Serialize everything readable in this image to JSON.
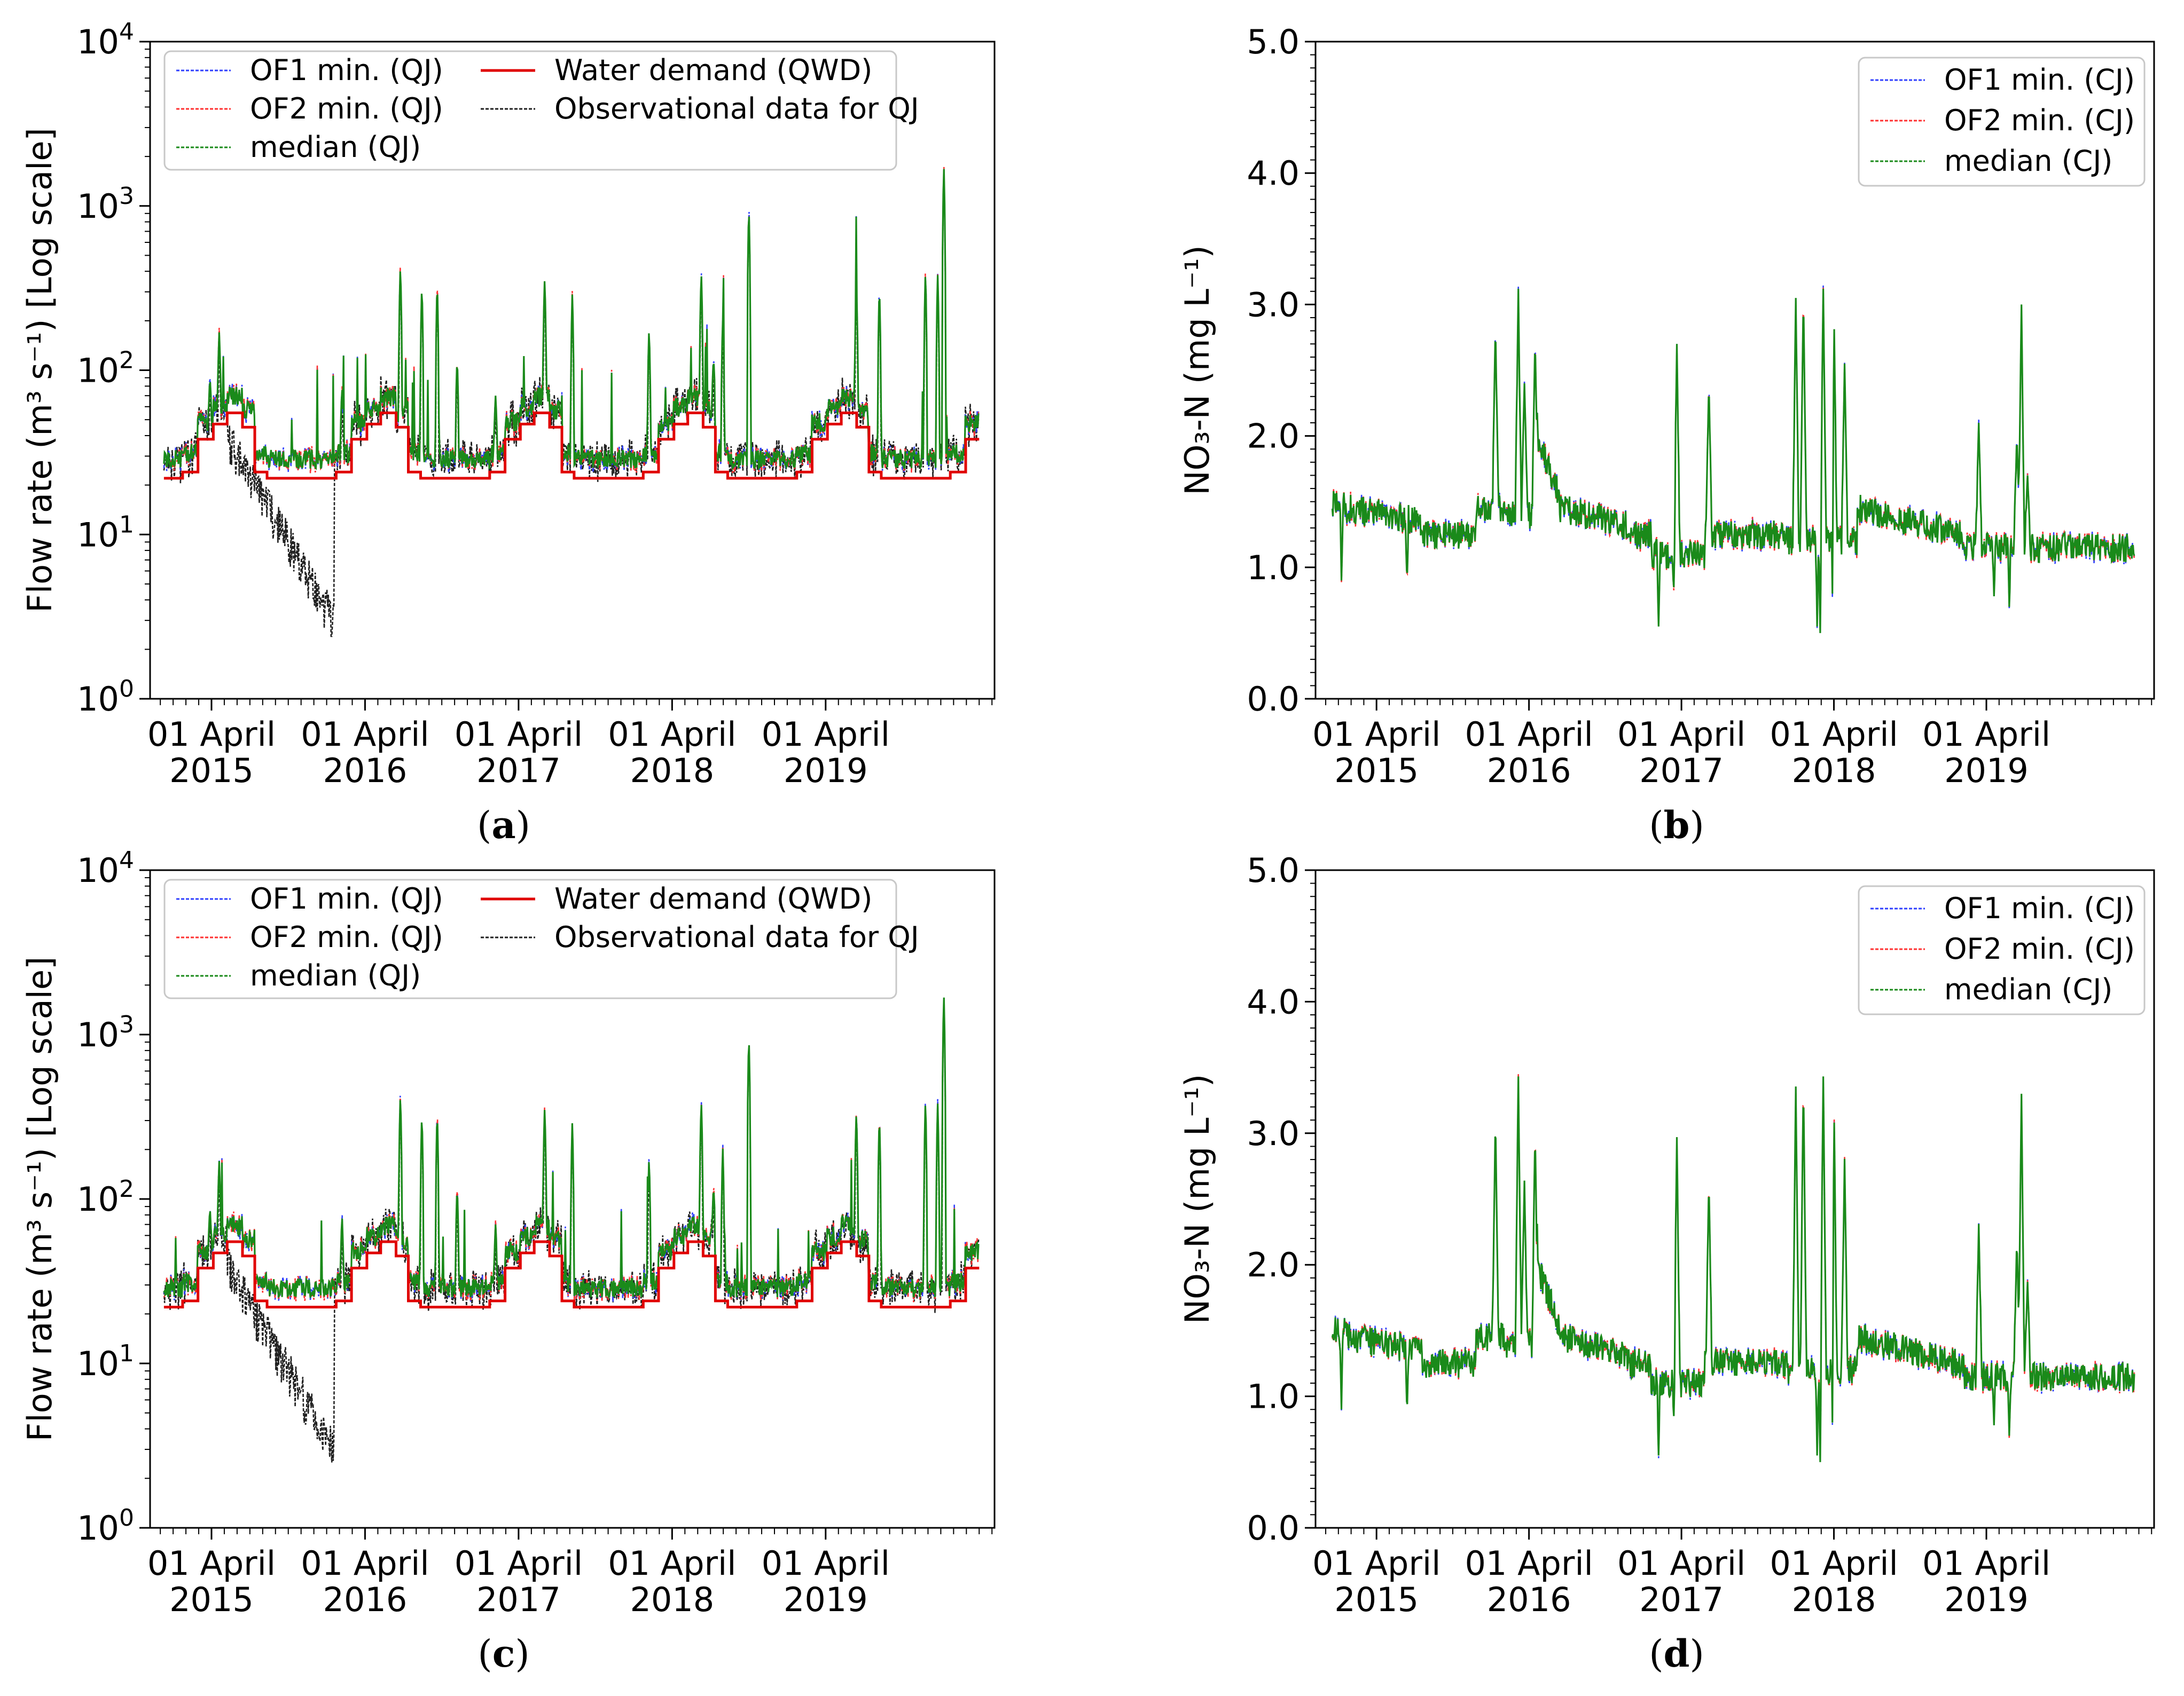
{
  "chart_data": [
    {
      "panel": "a",
      "caption": {
        "open": "(",
        "letter": "a",
        "close": ")"
      },
      "type": "line",
      "ylabel": "Flow rate (m³ s⁻¹) [Log scale]",
      "yscale": "log",
      "ylim": [
        1,
        10000
      ],
      "yticks": [
        {
          "base": "10",
          "exp": "0"
        },
        {
          "base": "10",
          "exp": "1"
        },
        {
          "base": "10",
          "exp": "2"
        },
        {
          "base": "10",
          "exp": "3"
        },
        {
          "base": "10",
          "exp": "4"
        }
      ],
      "xlim": [
        2014.85,
        2020.35
      ],
      "xticks": [
        {
          "line1": "01 April",
          "line2": "2015"
        },
        {
          "line1": "01 April",
          "line2": "2016"
        },
        {
          "line1": "01 April",
          "line2": "2017"
        },
        {
          "line1": "01 April",
          "line2": "2018"
        },
        {
          "line1": "01 April",
          "line2": "2019"
        }
      ],
      "legend": [
        "OF1 min. (QJ)",
        "OF2 min. (QJ)",
        "median (QJ)",
        "Water demand (QWD)",
        "Observational data for QJ"
      ],
      "legend_loc": "upper-left",
      "colors": {
        "of1": "#3040ff",
        "of2": "#ff3030",
        "median": "#1a8a1a",
        "demand": "#e00000",
        "obs": "#202020"
      }
    },
    {
      "panel": "b",
      "caption": {
        "open": "(",
        "letter": "b",
        "close": ")"
      },
      "type": "line",
      "ylabel": "NO₃-N (mg L⁻¹)",
      "ylim": [
        0,
        5
      ],
      "yticks": [
        "0.0",
        "1.0",
        "2.0",
        "3.0",
        "4.0",
        "5.0"
      ],
      "xlim": [
        2014.85,
        2020.35
      ],
      "xticks": [
        {
          "line1": "01 April",
          "line2": "2015"
        },
        {
          "line1": "01 April",
          "line2": "2016"
        },
        {
          "line1": "01 April",
          "line2": "2017"
        },
        {
          "line1": "01 April",
          "line2": "2018"
        },
        {
          "line1": "01 April",
          "line2": "2019"
        }
      ],
      "legend": [
        "OF1 min. (CJ)",
        "OF2 min. (CJ)",
        "median (CJ)"
      ],
      "legend_loc": "upper-right",
      "colors": {
        "of1": "#3040ff",
        "of2": "#ff3030",
        "median": "#1a8a1a"
      }
    },
    {
      "panel": "c",
      "caption": {
        "open": "(",
        "letter": "c",
        "close": ")"
      },
      "type": "line",
      "ylabel": "Flow rate (m³ s⁻¹) [Log scale]",
      "yscale": "log",
      "ylim": [
        1,
        10000
      ],
      "yticks": [
        {
          "base": "10",
          "exp": "0"
        },
        {
          "base": "10",
          "exp": "1"
        },
        {
          "base": "10",
          "exp": "2"
        },
        {
          "base": "10",
          "exp": "3"
        },
        {
          "base": "10",
          "exp": "4"
        }
      ],
      "xlim": [
        2014.85,
        2020.35
      ],
      "xticks": [
        {
          "line1": "01 April",
          "line2": "2015"
        },
        {
          "line1": "01 April",
          "line2": "2016"
        },
        {
          "line1": "01 April",
          "line2": "2017"
        },
        {
          "line1": "01 April",
          "line2": "2018"
        },
        {
          "line1": "01 April",
          "line2": "2019"
        }
      ],
      "legend": [
        "OF1 min. (QJ)",
        "OF2 min. (QJ)",
        "median (QJ)",
        "Water demand (QWD)",
        "Observational data for QJ"
      ],
      "legend_loc": "upper-left",
      "colors": {
        "of1": "#3040ff",
        "of2": "#ff3030",
        "median": "#1a8a1a",
        "demand": "#e00000",
        "obs": "#202020"
      }
    },
    {
      "panel": "d",
      "caption": {
        "open": "(",
        "letter": "d",
        "close": ")"
      },
      "type": "line",
      "ylabel": "NO₃-N (mg L⁻¹)",
      "ylim": [
        0,
        5
      ],
      "yticks": [
        "0.0",
        "1.0",
        "2.0",
        "3.0",
        "4.0",
        "5.0"
      ],
      "xlim": [
        2014.85,
        2020.35
      ],
      "xticks": [
        {
          "line1": "01 April",
          "line2": "2015"
        },
        {
          "line1": "01 April",
          "line2": "2016"
        },
        {
          "line1": "01 April",
          "line2": "2017"
        },
        {
          "line1": "01 April",
          "line2": "2018"
        },
        {
          "line1": "01 April",
          "line2": "2019"
        }
      ],
      "legend": [
        "OF1 min. (CJ)",
        "OF2 min. (CJ)",
        "median (CJ)"
      ],
      "legend_loc": "upper-right",
      "colors": {
        "of1": "#3040ff",
        "of2": "#ff3030",
        "median": "#1a8a1a"
      }
    }
  ]
}
